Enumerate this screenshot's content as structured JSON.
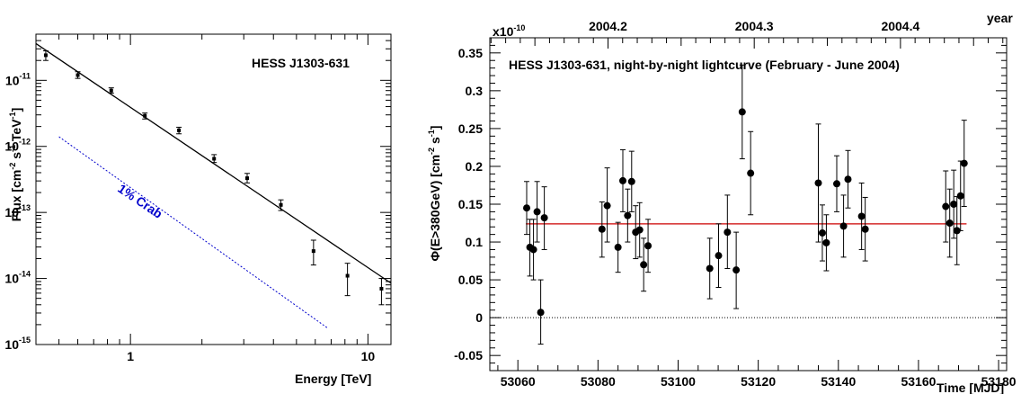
{
  "chart_data": [
    {
      "type": "scatter",
      "title": "HESS J1303-631",
      "xlabel": "Energy [TeV]",
      "ylabel_main": "Flux [cm",
      "ylabel_exp1": "-2",
      "ylabel_mid1": " s",
      "ylabel_exp2": "-1",
      "ylabel_mid2": " TeV",
      "ylabel_exp3": "-1",
      "ylabel_end": "]",
      "xscale": "log",
      "yscale": "log",
      "xlim": [
        0.4,
        12.5
      ],
      "ylim": [
        1e-15,
        5e-11
      ],
      "x_tick_labels": [
        {
          "value": 1,
          "label": "1"
        },
        {
          "value": 10,
          "label": "10"
        }
      ],
      "y_tick_labels": [
        {
          "value": 1e-11,
          "base": "10",
          "exp": "-11"
        },
        {
          "value": 1e-12,
          "base": "10",
          "exp": "-12"
        },
        {
          "value": 1e-13,
          "base": "10",
          "exp": "-13"
        },
        {
          "value": 1e-14,
          "base": "10",
          "exp": "-14"
        },
        {
          "value": 1e-15,
          "base": "10",
          "exp": "-15"
        }
      ],
      "series": [
        {
          "points": [
            {
              "x": 0.44,
              "y": 2.4e-11,
              "lo": 2e-11,
              "hi": 2.8e-11
            },
            {
              "x": 0.6,
              "y": 1.2e-11,
              "lo": 1.07e-11,
              "hi": 1.35e-11
            },
            {
              "x": 0.83,
              "y": 7e-12,
              "lo": 6.4e-12,
              "hi": 7.7e-12
            },
            {
              "x": 1.15,
              "y": 2.9e-12,
              "lo": 2.6e-12,
              "hi": 3.2e-12
            },
            {
              "x": 1.6,
              "y": 1.75e-12,
              "lo": 1.55e-12,
              "hi": 1.95e-12
            },
            {
              "x": 2.25,
              "y": 6.5e-13,
              "lo": 5.7e-13,
              "hi": 7.5e-13
            },
            {
              "x": 3.1,
              "y": 3.3e-13,
              "lo": 2.8e-13,
              "hi": 3.9e-13
            },
            {
              "x": 4.3,
              "y": 1.3e-13,
              "lo": 1.07e-13,
              "hi": 1.55e-13
            },
            {
              "x": 5.9,
              "y": 2.6e-14,
              "lo": 1.6e-14,
              "hi": 3.8e-14
            },
            {
              "x": 8.2,
              "y": 1.1e-14,
              "lo": 5.5e-15,
              "hi": 1.7e-14
            },
            {
              "x": 11.4,
              "y": 7e-15,
              "lo": 4e-15,
              "hi": 1e-14
            }
          ]
        }
      ],
      "fit_line": {
        "x": [
          0.4,
          12.5
        ],
        "y": [
          3.6e-11,
          8.5e-15
        ],
        "color": "#000000"
      },
      "crab_line": {
        "label": "1% Crab",
        "x": [
          0.5,
          6.8
        ],
        "y": [
          1.4e-12,
          1.75e-15
        ],
        "color": "#0000cc"
      }
    },
    {
      "type": "scatter",
      "title": "HESS J1303-631, night-by-night lightcurve (February - June 2004)",
      "xlabel": "Time [MJD]",
      "ylabel_main": "Φ(E>380GeV) [cm",
      "ylabel_exp1": "-2",
      "ylabel_mid1": " s",
      "ylabel_exp2": "-1",
      "ylabel_end": "]",
      "y_multiplier_base": "x10",
      "y_multiplier_exp": "-10",
      "top_axis_label": "year",
      "xlim": [
        53053,
        53182
      ],
      "ylim": [
        -0.07,
        0.37
      ],
      "x_tick_labels": [
        "53060",
        "53080",
        "53100",
        "53120",
        "53140",
        "53160",
        "53180"
      ],
      "y_tick_labels": [
        "-0.05",
        "0",
        "0.05",
        "0.1",
        "0.15",
        "0.2",
        "0.25",
        "0.3",
        "0.35"
      ],
      "top_tick_labels": [
        {
          "mjd": 53082.5,
          "label": "2004.2"
        },
        {
          "mjd": 53119,
          "label": "2004.3"
        },
        {
          "mjd": 53155.5,
          "label": "2004.4"
        }
      ],
      "mean_line": {
        "y": 0.124,
        "x": [
          53062,
          53172
        ],
        "color": "#cc0000"
      },
      "zero_line": {
        "y": 0,
        "style": "dotted"
      },
      "series": [
        {
          "points": [
            {
              "x": 53062.2,
              "y": 0.145,
              "lo": 0.11,
              "hi": 0.18
            },
            {
              "x": 53063.0,
              "y": 0.093,
              "lo": 0.055,
              "hi": 0.13
            },
            {
              "x": 53063.9,
              "y": 0.09,
              "lo": 0.05,
              "hi": 0.13
            },
            {
              "x": 53064.8,
              "y": 0.14,
              "lo": 0.1,
              "hi": 0.18
            },
            {
              "x": 53065.7,
              "y": 0.007,
              "lo": -0.035,
              "hi": 0.05
            },
            {
              "x": 53066.6,
              "y": 0.132,
              "lo": 0.09,
              "hi": 0.173
            },
            {
              "x": 53081.0,
              "y": 0.117,
              "lo": 0.08,
              "hi": 0.153
            },
            {
              "x": 53082.3,
              "y": 0.148,
              "lo": 0.1,
              "hi": 0.198
            },
            {
              "x": 53085.0,
              "y": 0.093,
              "lo": 0.06,
              "hi": 0.126
            },
            {
              "x": 53086.2,
              "y": 0.181,
              "lo": 0.14,
              "hi": 0.222
            },
            {
              "x": 53087.4,
              "y": 0.135,
              "lo": 0.1,
              "hi": 0.17
            },
            {
              "x": 53088.4,
              "y": 0.18,
              "lo": 0.14,
              "hi": 0.22
            },
            {
              "x": 53089.4,
              "y": 0.113,
              "lo": 0.078,
              "hi": 0.148
            },
            {
              "x": 53090.4,
              "y": 0.116,
              "lo": 0.08,
              "hi": 0.152
            },
            {
              "x": 53091.4,
              "y": 0.07,
              "lo": 0.035,
              "hi": 0.105
            },
            {
              "x": 53092.5,
              "y": 0.095,
              "lo": 0.06,
              "hi": 0.13
            },
            {
              "x": 53107.9,
              "y": 0.065,
              "lo": 0.025,
              "hi": 0.105
            },
            {
              "x": 53110.1,
              "y": 0.082,
              "lo": 0.04,
              "hi": 0.124
            },
            {
              "x": 53112.3,
              "y": 0.113,
              "lo": 0.065,
              "hi": 0.162
            },
            {
              "x": 53114.5,
              "y": 0.063,
              "lo": 0.012,
              "hi": 0.113
            },
            {
              "x": 53116.0,
              "y": 0.272,
              "lo": 0.21,
              "hi": 0.334
            },
            {
              "x": 53118.1,
              "y": 0.191,
              "lo": 0.136,
              "hi": 0.246
            },
            {
              "x": 53135.0,
              "y": 0.178,
              "lo": 0.1,
              "hi": 0.256
            },
            {
              "x": 53136.0,
              "y": 0.112,
              "lo": 0.075,
              "hi": 0.149
            },
            {
              "x": 53137.0,
              "y": 0.099,
              "lo": 0.062,
              "hi": 0.136
            },
            {
              "x": 53139.6,
              "y": 0.177,
              "lo": 0.14,
              "hi": 0.214
            },
            {
              "x": 53141.3,
              "y": 0.121,
              "lo": 0.08,
              "hi": 0.162
            },
            {
              "x": 53142.4,
              "y": 0.183,
              "lo": 0.145,
              "hi": 0.221
            },
            {
              "x": 53145.8,
              "y": 0.134,
              "lo": 0.09,
              "hi": 0.178
            },
            {
              "x": 53146.7,
              "y": 0.117,
              "lo": 0.075,
              "hi": 0.159
            },
            {
              "x": 53166.8,
              "y": 0.147,
              "lo": 0.1,
              "hi": 0.194
            },
            {
              "x": 53167.8,
              "y": 0.125,
              "lo": 0.08,
              "hi": 0.17
            },
            {
              "x": 53168.8,
              "y": 0.15,
              "lo": 0.105,
              "hi": 0.195
            },
            {
              "x": 53169.6,
              "y": 0.115,
              "lo": 0.07,
              "hi": 0.16
            },
            {
              "x": 53170.5,
              "y": 0.161,
              "lo": 0.115,
              "hi": 0.207
            },
            {
              "x": 53171.4,
              "y": 0.204,
              "lo": 0.147,
              "hi": 0.261
            }
          ]
        }
      ]
    }
  ]
}
